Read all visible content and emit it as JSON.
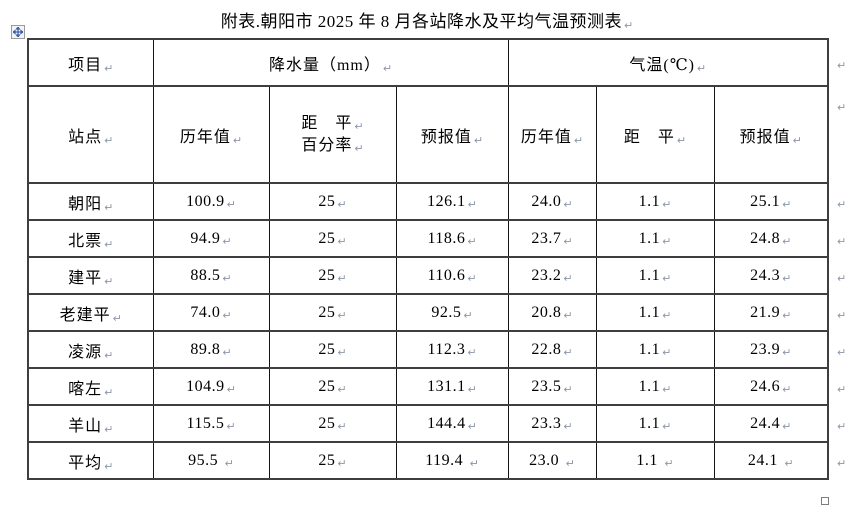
{
  "page": {
    "title": "附表.朝阳市 2025 年 8 月各站降水及平均气温预测表"
  },
  "marks": {
    "pilcrow": "↵"
  },
  "table": {
    "header1": {
      "item": "项目",
      "precip_group": "降水量（mm）",
      "temp_group": "气温(℃)"
    },
    "header2": {
      "station": "站点",
      "precip_hist": "历年值",
      "anomaly_pct_line1": "距　平",
      "anomaly_pct_line2": "百分率",
      "precip_forecast": "预报值",
      "temp_hist": "历年值",
      "temp_anomaly": "距　平",
      "temp_forecast": "预报值"
    },
    "rows": [
      {
        "station": "朝阳",
        "precip_hist": "100.9",
        "anomaly_pct": "25",
        "precip_forecast": "126.1",
        "temp_hist": "24.0",
        "temp_anomaly": "1.1",
        "temp_forecast": "25.1"
      },
      {
        "station": "北票",
        "precip_hist": "94.9",
        "anomaly_pct": "25",
        "precip_forecast": "118.6",
        "temp_hist": "23.7",
        "temp_anomaly": "1.1",
        "temp_forecast": "24.8"
      },
      {
        "station": "建平",
        "precip_hist": "88.5",
        "anomaly_pct": "25",
        "precip_forecast": "110.6",
        "temp_hist": "23.2",
        "temp_anomaly": "1.1",
        "temp_forecast": "24.3"
      },
      {
        "station": "老建平",
        "precip_hist": "74.0",
        "anomaly_pct": "25",
        "precip_forecast": "92.5",
        "temp_hist": "20.8",
        "temp_anomaly": "1.1",
        "temp_forecast": "21.9"
      },
      {
        "station": "凌源",
        "precip_hist": "89.8",
        "anomaly_pct": "25",
        "precip_forecast": "112.3",
        "temp_hist": "22.8",
        "temp_anomaly": "1.1",
        "temp_forecast": "23.9"
      },
      {
        "station": "喀左",
        "precip_hist": "104.9",
        "anomaly_pct": "25",
        "precip_forecast": "131.1",
        "temp_hist": "23.5",
        "temp_anomaly": "1.1",
        "temp_forecast": "24.6"
      },
      {
        "station": "羊山",
        "precip_hist": "115.5",
        "anomaly_pct": "25",
        "precip_forecast": "144.4",
        "temp_hist": "23.3",
        "temp_anomaly": "1.1",
        "temp_forecast": "24.4"
      },
      {
        "station": "平均",
        "precip_hist": "95.5 ",
        "anomaly_pct": "25",
        "precip_forecast": "119.4 ",
        "temp_hist": "23.0 ",
        "temp_anomaly": "1.1 ",
        "temp_forecast": "24.1 "
      }
    ]
  }
}
